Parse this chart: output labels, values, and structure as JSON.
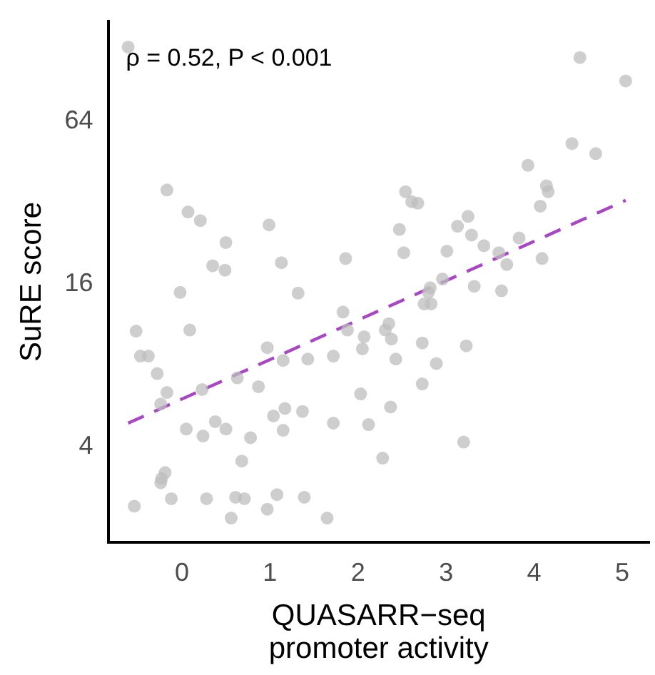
{
  "chart_data": {
    "type": "scatter",
    "xlabel": "QUASARR−seq\npromoter activity",
    "ylabel": "SuRE score",
    "annotations": [
      "ρ = 0.52, P < 0.001"
    ],
    "log": "y",
    "grid": false,
    "legend": false,
    "marker": "circle",
    "xlim": [
      -0.83,
      5.3
    ],
    "xticks": [
      0,
      1,
      2,
      3,
      4,
      5
    ],
    "ylim": [
      1.76,
      151
    ],
    "yticks": [
      4,
      16,
      64
    ],
    "series": [
      {
        "color": "#bebebe",
        "x": [
          -0.61,
          -0.17,
          0.07,
          0.21,
          0.99,
          0.5,
          1.13,
          1.86,
          0.35,
          0.49,
          -0.02,
          1.32,
          4.52,
          5.04,
          4.43,
          4.7,
          3.93,
          2.54,
          4.14,
          4.16,
          2.61,
          2.68,
          4.07,
          3.25,
          2.47,
          3.13,
          3.29,
          3.43,
          2.52,
          3.01,
          3.83,
          3.6,
          3.69,
          4.09,
          2.96,
          3.32,
          3.63,
          2.82,
          -0.52,
          0.09,
          1.83,
          1.88,
          2.07,
          2.05,
          -0.47,
          -0.38,
          0.97,
          1.15,
          1.43,
          1.72,
          -0.28,
          0.63,
          0.23,
          0.87,
          -0.17,
          -0.24,
          2.03,
          1.17,
          1.04,
          1.37,
          0.38,
          0.05,
          0.5,
          0.24,
          0.78,
          1.15,
          1.72,
          2.12,
          0.68,
          -0.19,
          -0.23,
          -0.24,
          -0.54,
          -0.12,
          0.28,
          0.61,
          0.71,
          1.08,
          1.39,
          0.97,
          0.56,
          1.65,
          2.75,
          2.83,
          2.8,
          2.35,
          2.31,
          2.38,
          2.73,
          3.23,
          2.43,
          2.89,
          2.73,
          2.37,
          3.2,
          2.28
        ],
        "values": [
          121,
          35.7,
          29.6,
          27.5,
          26.5,
          22.8,
          19.2,
          19.9,
          18.7,
          18,
          14.9,
          14.8,
          110.6,
          90.6,
          53.1,
          48.7,
          44.1,
          35.2,
          37,
          35.2,
          32.3,
          31.9,
          31.1,
          28.5,
          25.5,
          26.2,
          24.3,
          22.2,
          20.9,
          21.2,
          23.7,
          20.9,
          18.9,
          19.9,
          16.7,
          15.7,
          15.1,
          15.5,
          10.7,
          10.8,
          12.6,
          10.8,
          10.2,
          9.2,
          8.65,
          8.65,
          9.3,
          8.33,
          8.43,
          8.65,
          7.45,
          7.18,
          6.5,
          6.66,
          6.34,
          5.74,
          6.26,
          5.53,
          5.19,
          5.39,
          4.94,
          4.64,
          4.64,
          4.37,
          4.31,
          4.59,
          4.88,
          4.82,
          3.53,
          3.2,
          3.04,
          2.93,
          2.4,
          2.56,
          2.56,
          2.59,
          2.56,
          2.65,
          2.59,
          2.34,
          2.17,
          2.17,
          13.5,
          13.5,
          14.9,
          11.4,
          10.8,
          10,
          9.67,
          9.44,
          8.43,
          8.12,
          6.82,
          5.6,
          4.15,
          3.62
        ]
      },
      {
        "type": "line",
        "color": "#a846c4",
        "line_style": "dashed",
        "marker": "none",
        "x": [
          -0.61,
          5.04
        ],
        "values": [
          4.88,
          32.7
        ]
      }
    ]
  }
}
